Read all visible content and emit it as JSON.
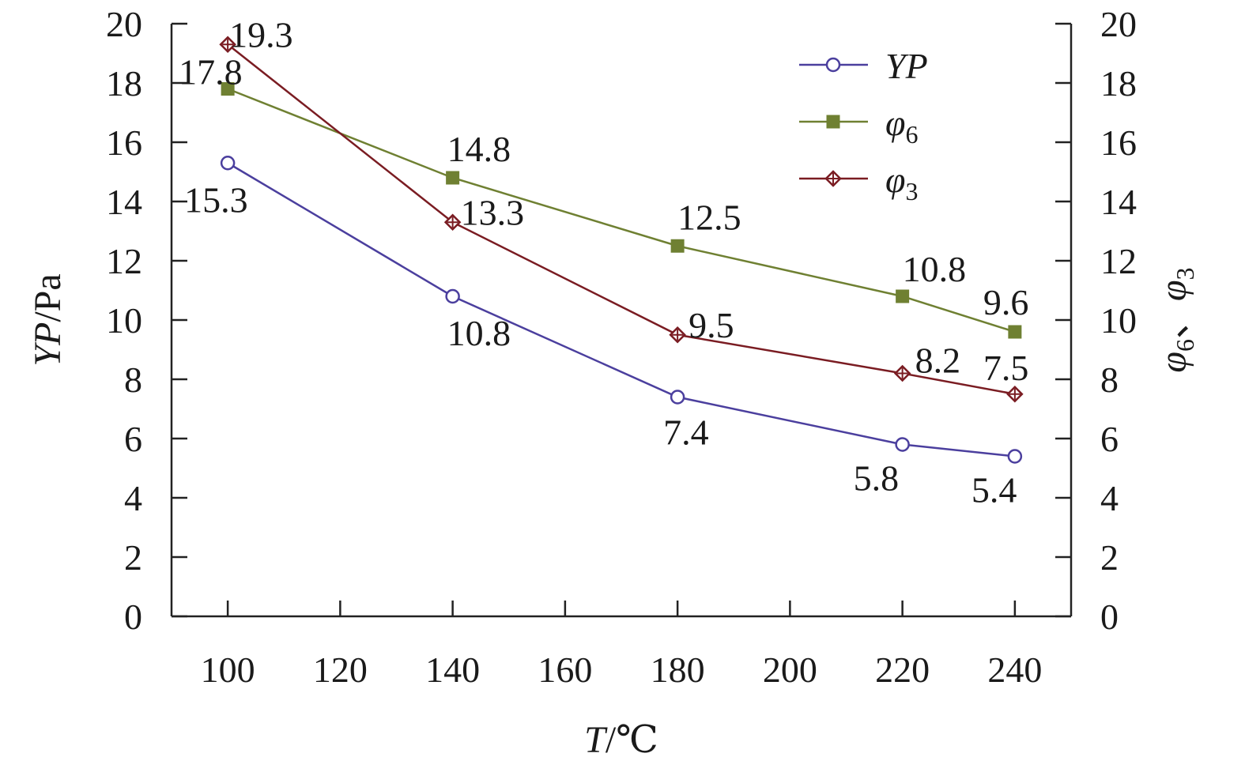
{
  "chart_data": {
    "type": "line",
    "x": [
      100,
      140,
      180,
      220,
      240
    ],
    "xlim": [
      90,
      250
    ],
    "xticks": [
      100,
      120,
      140,
      160,
      180,
      200,
      220,
      240
    ],
    "ylim": [
      0,
      20
    ],
    "yticks": [
      0,
      2,
      4,
      6,
      8,
      10,
      12,
      14,
      16,
      18,
      20
    ],
    "y2lim": [
      0,
      20
    ],
    "xlabel": {
      "main": "T",
      "unit": "/℃"
    },
    "ylabel": {
      "main": "YP",
      "unit": "/Pa"
    },
    "y2label": {
      "main": "φ",
      "sub1": "6",
      "sep": "、",
      "main2": "φ",
      "sub2": "3"
    },
    "legend_position": "top-right",
    "grid": false,
    "series": [
      {
        "name": "YP",
        "legend_sub": "",
        "color": "#4b3f9e",
        "marker": "open-circle",
        "values": [
          15.3,
          10.8,
          7.4,
          5.8,
          5.4
        ],
        "labels": [
          "15.3",
          "10.8",
          "7.4",
          "5.8",
          "5.4"
        ]
      },
      {
        "name": "φ",
        "legend_sub": "6",
        "color": "#6f8032",
        "marker": "filled-square",
        "values": [
          17.8,
          14.8,
          12.5,
          10.8,
          9.6
        ],
        "labels": [
          "17.8",
          "14.8",
          "12.5",
          "10.8",
          "9.6"
        ]
      },
      {
        "name": "φ",
        "legend_sub": "3",
        "color": "#7a1c22",
        "marker": "crossed-diamond",
        "values": [
          19.3,
          13.3,
          9.5,
          8.2,
          7.5
        ],
        "labels": [
          "19.3",
          "13.3",
          "9.5",
          "8.2",
          "7.5"
        ]
      }
    ]
  }
}
